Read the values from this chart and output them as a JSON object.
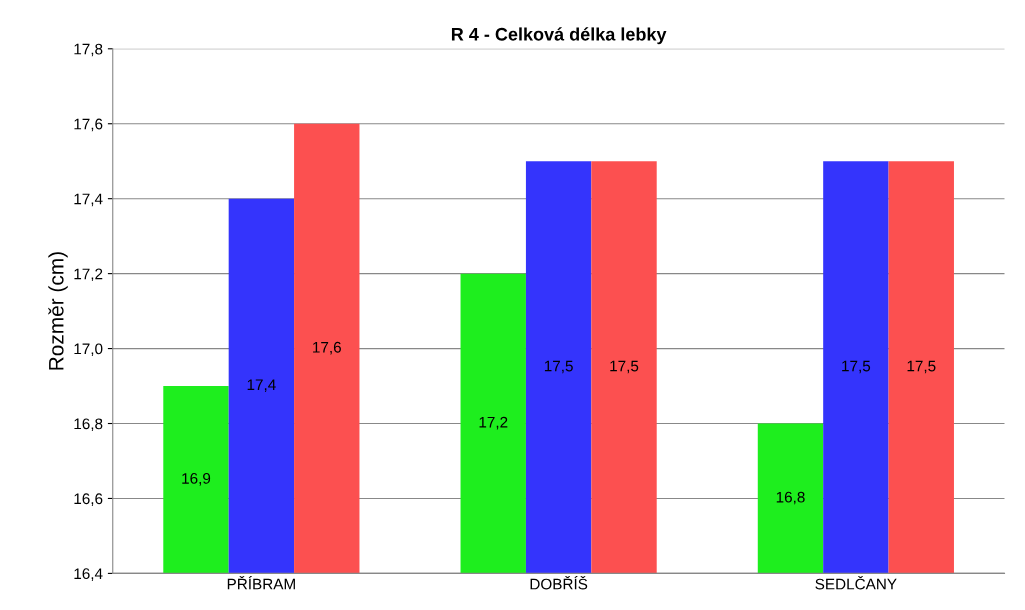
{
  "chart_data": {
    "type": "bar",
    "title": "R 4 - Celková délka lebky",
    "ylabel": "Rozměr (cm)",
    "categories": [
      "PŘÍBRAM",
      "DOBŘÍŠ",
      "SEDLČANY"
    ],
    "series": [
      {
        "color": "#1eee1e",
        "values": [
          16.9,
          17.2,
          16.8
        ],
        "value_labels": [
          "16,9",
          "17,2",
          "16,8"
        ]
      },
      {
        "color": "#3434fc",
        "values": [
          17.4,
          17.5,
          17.5
        ],
        "value_labels": [
          "17,4",
          "17,5",
          "17,5"
        ]
      },
      {
        "color": "#fc5050",
        "values": [
          17.6,
          17.5,
          17.5
        ],
        "value_labels": [
          "17,6",
          "17,5",
          "17,5"
        ]
      }
    ],
    "ylim": [
      16.4,
      17.8
    ],
    "yticks": [
      {
        "value": 16.4,
        "label": "16,4"
      },
      {
        "value": 16.6,
        "label": "16,6"
      },
      {
        "value": 16.8,
        "label": "16,8"
      },
      {
        "value": 17.0,
        "label": "17,0"
      },
      {
        "value": 17.2,
        "label": "17,2"
      },
      {
        "value": 17.4,
        "label": "17,4"
      },
      {
        "value": 17.6,
        "label": "17,6"
      },
      {
        "value": 17.8,
        "label": "17,8"
      }
    ],
    "grid": "y",
    "legend": false
  }
}
